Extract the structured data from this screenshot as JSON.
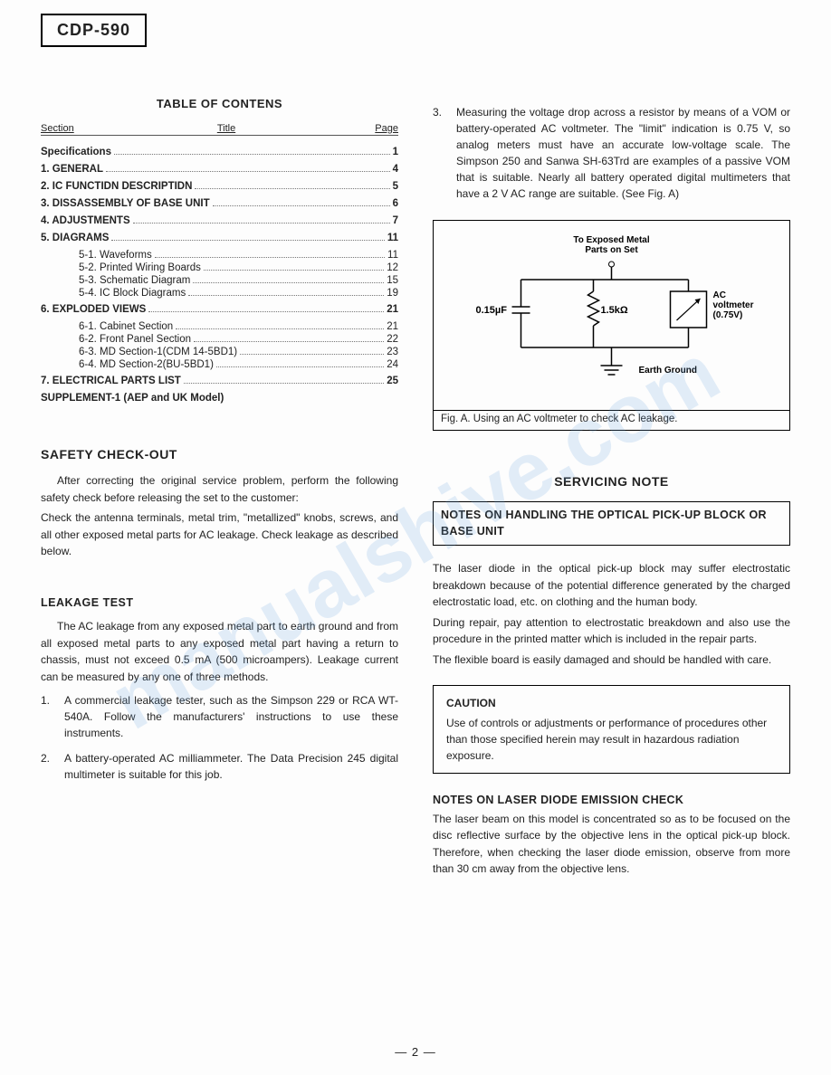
{
  "model": "CDP-590",
  "toc": {
    "title": "TABLE OF CONTENS",
    "headers": {
      "section": "Section",
      "title": "Title",
      "page": "Page"
    },
    "rows": [
      {
        "type": "main",
        "label": "Specifications",
        "pg": "1"
      },
      {
        "type": "main",
        "label": "1. GENERAL",
        "pg": "4"
      },
      {
        "type": "main",
        "label": "2. IC FUNCTIDN DESCRIPTIDN",
        "pg": "5"
      },
      {
        "type": "main",
        "label": "3. DISSASSEMBLY OF BASE UNIT",
        "pg": "6"
      },
      {
        "type": "main",
        "label": "4. ADJUSTMENTS",
        "pg": "7"
      },
      {
        "type": "main",
        "label": "5. DIAGRAMS",
        "pg": "11"
      },
      {
        "type": "sub",
        "label": "5-1. Waveforms",
        "pg": "11"
      },
      {
        "type": "sub",
        "label": "5-2. Printed Wiring Boards",
        "pg": "12"
      },
      {
        "type": "sub",
        "label": "5-3. Schematic Diagram",
        "pg": "15"
      },
      {
        "type": "sub",
        "label": "5-4. IC Block Diagrams",
        "pg": "19"
      },
      {
        "type": "main",
        "label": "6. EXPLODED VIEWS",
        "pg": "21"
      },
      {
        "type": "sub",
        "label": "6-1. Cabinet Section",
        "pg": "21"
      },
      {
        "type": "sub",
        "label": "6-2. Front Panel Section",
        "pg": "22"
      },
      {
        "type": "sub",
        "label": "6-3. MD Section-1(CDM 14-5BD1)",
        "pg": "23"
      },
      {
        "type": "sub",
        "label": "6-4. MD Section-2(BU-5BD1)",
        "pg": "24"
      },
      {
        "type": "main",
        "label": "7. ELECTRICAL PARTS LIST",
        "pg": "25"
      }
    ],
    "supplement": "SUPPLEMENT-1 (AEP and UK Model)"
  },
  "safety": {
    "title": "SAFETY CHECK-OUT",
    "p1": "After correcting the original service problem, perform the following safety check before releasing the set to the customer:",
    "p2": "Check the antenna terminals, metal trim, \"metallized\" knobs, screws, and all other exposed metal parts for AC leakage. Check leakage as described below."
  },
  "leak": {
    "title": "LEAKAGE TEST",
    "p1": "The AC leakage from any exposed metal part to earth ground and from all exposed metal parts to any exposed metal part having a return to chassis, must not exceed 0.5 mA (500 microampers). Leakage current can be measured by any one of three methods.",
    "items": [
      {
        "n": "1.",
        "t": "A commercial leakage tester, such as the Simpson 229 or RCA WT-540A. Follow the manufacturers' instructions to use these instruments."
      },
      {
        "n": "2.",
        "t": "A battery-operated AC milliammeter. The Data Precision 245 digital multimeter is suitable for this job."
      }
    ]
  },
  "right_top": {
    "n": "3.",
    "t": "Measuring the voltage drop across a resistor by means of a VOM or battery-operated AC voltmeter. The \"limit\" indication is 0.75 V, so analog meters must have an accurate low-voltage scale. The Simpson 250 and Sanwa SH-63Trd are examples of a passive VOM that is suitable. Nearly all battery operated digital multimeters that have a 2 V AC range are suitable. (See Fig. A)"
  },
  "fig": {
    "top_label": "To Exposed Metal\nParts on Set",
    "cap_val": "0.15µF",
    "res_val": "1.5kΩ",
    "meter_l1": "AC",
    "meter_l2": "voltmeter",
    "meter_l3": "(0.75V)",
    "ground": "Earth Ground",
    "caption": "Fig. A. Using an AC voltmeter to check AC leakage."
  },
  "serv": {
    "title": "SERVICING NOTE",
    "note_box": "NOTES ON HANDLING THE OPTICAL PICK-UP BLOCK OR BASE UNIT",
    "p1": "The laser diode in the optical pick-up block may suffer electrostatic breakdown because of the potential difference generated by the charged electrostatic load, etc. on clothing and the human body.",
    "p2": "During repair, pay attention to electrostatic breakdown and also use the procedure in the printed matter which is included in the repair parts.",
    "p3": "The flexible board is easily damaged and should be handled with care.",
    "caution_title": "CAUTION",
    "caution_body": "Use of controls or adjustments or performance of procedures other than those specified herein may result in hazardous radiation exposure.",
    "laser_title": "NOTES ON LASER DIODE EMISSION CHECK",
    "laser_body": "The laser beam on this model is concentrated so as to be focused on the disc reflective surface by the objective lens in the optical pick-up block. Therefore, when checking the laser diode emission, observe from more than 30 cm away from the objective lens."
  },
  "page_number": "— 2 —",
  "watermark": "manualshive.com"
}
